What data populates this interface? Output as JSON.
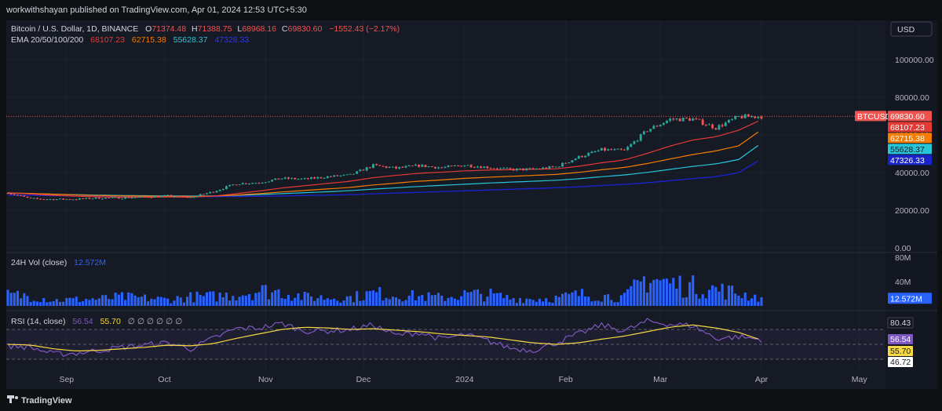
{
  "header": {
    "published": "workwithshayan published on TradingView.com, Apr 01, 2024 12:53 UTC+5:30"
  },
  "legend": {
    "symbol": "Bitcoin / U.S. Dollar, 1D, BINANCE",
    "o_label": "O",
    "o": "71374.48",
    "h_label": "H",
    "h": "71388.75",
    "l_label": "L",
    "l": "68968.16",
    "c_label": "C",
    "c": "69830.60",
    "change": "−1552.43 (−2.17%)",
    "ema_label": "EMA 20/50/100/200",
    "ema20": "68107.23",
    "ema50": "62715.38",
    "ema100": "55628.37",
    "ema200": "47326.33"
  },
  "currency_button": "USD",
  "volume_pane": {
    "label": "24H Vol (close)",
    "value": "12.572M"
  },
  "rsi_pane": {
    "label": "RSI (14, close)",
    "value": "56.54",
    "ma": "55.70",
    "zeros": "∅ ∅ ∅ ∅ ∅ ∅"
  },
  "brand": "TradingView",
  "colors": {
    "up": "#26a69a",
    "down": "#ef5350",
    "ema20": "#e53935",
    "ema50": "#f57c00",
    "ema100": "#26c6da",
    "ema200": "#1a23c9",
    "volume": "#2962ff",
    "rsi": "#7e57c2",
    "rsi_ma": "#f6d845"
  },
  "chart_data": {
    "type": "candlestick",
    "x_axis": {
      "ticks": [
        "Sep",
        "Oct",
        "Nov",
        "Dec",
        "2024",
        "Feb",
        "Mar",
        "Apr",
        "May"
      ]
    },
    "price_axis": {
      "range": [
        0,
        112000
      ],
      "ticks": [
        "100000.00",
        "80000.00",
        "60000.00",
        "40000.00",
        "20000.00",
        "0.00"
      ],
      "tick_values": [
        100000,
        80000,
        60000,
        40000,
        20000,
        0
      ]
    },
    "labels": {
      "symbol_tag": "BTCUSD",
      "close": "69830.60",
      "ema20": "68107.23",
      "ema50": "62715.38",
      "ema100": "55628.37",
      "ema200": "47326.33"
    },
    "volume_axis": {
      "range": [
        0,
        80
      ],
      "unit": "M",
      "ticks": [
        "80M",
        "40M",
        "0"
      ],
      "tick_values": [
        80,
        40,
        0
      ],
      "last": "12.572M"
    },
    "rsi_axis": {
      "range": [
        25,
        90
      ],
      "ticks": [
        "80.43",
        "56.54",
        "55.70",
        "46.72"
      ],
      "bands": [
        70,
        50,
        30
      ]
    },
    "weeks": [
      "2023-08-14",
      "2023-08-21",
      "2023-08-28",
      "2023-09-04",
      "2023-09-11",
      "2023-09-18",
      "2023-09-25",
      "2023-10-02",
      "2023-10-09",
      "2023-10-16",
      "2023-10-23",
      "2023-10-30",
      "2023-11-06",
      "2023-11-13",
      "2023-11-20",
      "2023-11-27",
      "2023-12-04",
      "2023-12-11",
      "2023-12-18",
      "2023-12-25",
      "2024-01-01",
      "2024-01-08",
      "2024-01-15",
      "2024-01-22",
      "2024-01-29",
      "2024-02-05",
      "2024-02-12",
      "2024-02-19",
      "2024-02-26",
      "2024-03-04",
      "2024-03-11",
      "2024-03-18",
      "2024-03-25",
      "2024-04-01"
    ],
    "close_weekly": [
      29200,
      26100,
      25800,
      25900,
      26500,
      26600,
      27000,
      27600,
      26800,
      29900,
      34100,
      34700,
      36900,
      36500,
      37800,
      38700,
      43800,
      42300,
      43700,
      42600,
      44000,
      42800,
      41600,
      41800,
      43000,
      48300,
      52100,
      51700,
      62500,
      68300,
      68400,
      63800,
      69600,
      69830
    ],
    "ema20_weekly": [
      29300,
      28600,
      27900,
      27400,
      27100,
      26900,
      26900,
      27000,
      26950,
      27500,
      28800,
      30200,
      31800,
      33000,
      34200,
      35400,
      37300,
      38500,
      39600,
      40200,
      40900,
      41300,
      41500,
      41700,
      42000,
      43300,
      45200,
      46700,
      50200,
      54100,
      57300,
      59000,
      62500,
      68107
    ],
    "ema50_weekly": [
      29200,
      28900,
      28500,
      28100,
      27800,
      27600,
      27500,
      27400,
      27300,
      27500,
      28100,
      28800,
      29700,
      30500,
      31300,
      32100,
      33400,
      34400,
      35400,
      36100,
      36900,
      37500,
      38000,
      38500,
      39000,
      40100,
      41500,
      42700,
      44800,
      47200,
      49600,
      51500,
      54200,
      62715
    ],
    "ema100_weekly": [
      29000,
      28800,
      28500,
      28200,
      28000,
      27800,
      27700,
      27600,
      27500,
      27600,
      27900,
      28300,
      28800,
      29300,
      29800,
      30400,
      31200,
      31900,
      32600,
      33200,
      33800,
      34400,
      34900,
      35400,
      35900,
      36700,
      37800,
      38700,
      40100,
      41700,
      43300,
      44600,
      46900,
      55628
    ],
    "ema200_weekly": [
      28000,
      27900,
      27700,
      27600,
      27500,
      27400,
      27300,
      27200,
      27200,
      27200,
      27300,
      27400,
      27600,
      27800,
      28000,
      28300,
      28700,
      29100,
      29500,
      29900,
      30300,
      30700,
      31100,
      31500,
      31900,
      32400,
      33100,
      33700,
      34600,
      35700,
      36800,
      37800,
      39900,
      47326
    ],
    "volume_weekly_m": [
      17,
      16,
      9,
      10,
      11,
      14,
      12,
      10,
      14,
      15,
      18,
      24,
      22,
      14,
      13,
      13,
      20,
      17,
      15,
      13,
      18,
      18,
      12,
      11,
      12,
      18,
      16,
      13,
      45,
      35,
      30,
      26,
      20,
      12.572
    ],
    "rsi_weekly": [
      48,
      46,
      37,
      38,
      42,
      46,
      49,
      52,
      44,
      58,
      71,
      72,
      78,
      68,
      68,
      70,
      76,
      62,
      66,
      57,
      63,
      55,
      45,
      42,
      52,
      64,
      76,
      68,
      81,
      77,
      75,
      58,
      60,
      56.54
    ],
    "rsi_ma_weekly": [
      50,
      49,
      44,
      41,
      42,
      44,
      46,
      49,
      48,
      51,
      58,
      64,
      70,
      73,
      72,
      70,
      71,
      69,
      67,
      64,
      62,
      60,
      56,
      52,
      50,
      52,
      57,
      61,
      67,
      73,
      76,
      72,
      66,
      55.7
    ]
  }
}
